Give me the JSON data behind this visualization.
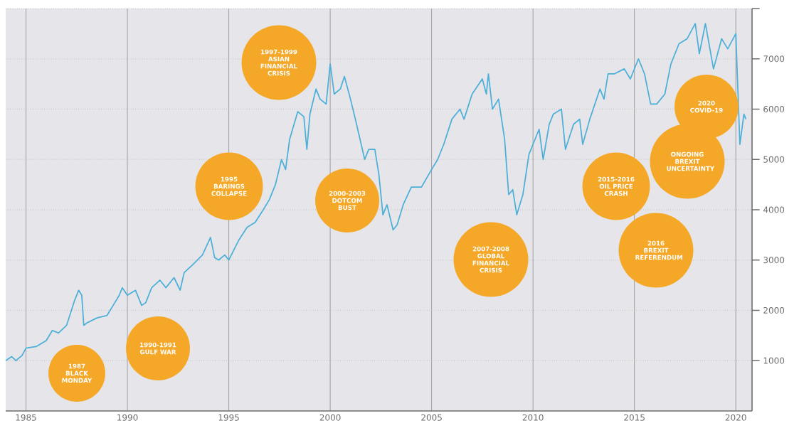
{
  "chart_data": {
    "type": "line",
    "series": [
      {
        "color": "#4bafd8",
        "x": [
          1984.0,
          1984.3,
          1984.5,
          1984.8,
          1985.0,
          1985.5,
          1986.0,
          1986.3,
          1986.6,
          1987.0,
          1987.4,
          1987.6,
          1987.75,
          1987.85,
          1988.0,
          1988.5,
          1989.0,
          1989.3,
          1989.6,
          1989.75,
          1990.0,
          1990.4,
          1990.7,
          1990.9,
          1991.2,
          1991.6,
          1991.9,
          1992.3,
          1992.6,
          1992.8,
          1993.2,
          1993.7,
          1994.1,
          1994.3,
          1994.5,
          1994.8,
          1995.0,
          1995.5,
          1995.9,
          1996.3,
          1996.7,
          1997.0,
          1997.3,
          1997.6,
          1997.8,
          1998.0,
          1998.4,
          1998.7,
          1998.85,
          1999.0,
          1999.3,
          1999.5,
          1999.8,
          2000.0,
          2000.2,
          2000.5,
          2000.7,
          2001.0,
          2001.3,
          2001.7,
          2001.9,
          2002.2,
          2002.4,
          2002.6,
          2002.8,
          2003.1,
          2003.3,
          2003.6,
          2004.0,
          2004.5,
          2005.0,
          2005.3,
          2005.6,
          2006.0,
          2006.4,
          2006.6,
          2007.0,
          2007.5,
          2007.7,
          2007.8,
          2008.0,
          2008.3,
          2008.6,
          2008.8,
          2009.0,
          2009.2,
          2009.5,
          2009.8,
          2010.0,
          2010.3,
          2010.5,
          2010.8,
          2011.0,
          2011.4,
          2011.6,
          2012.0,
          2012.3,
          2012.45,
          2012.8,
          2013.3,
          2013.5,
          2013.7,
          2014.0,
          2014.5,
          2014.8,
          2015.2,
          2015.5,
          2015.8,
          2016.1,
          2016.5,
          2016.8,
          2017.2,
          2017.6,
          2018.0,
          2018.2,
          2018.5,
          2018.9,
          2019.3,
          2019.6,
          2020.0,
          2020.2,
          2020.4,
          2020.5
        ],
        "values": [
          1000,
          1080,
          1000,
          1100,
          1250,
          1280,
          1400,
          1600,
          1550,
          1700,
          2200,
          2400,
          2300,
          1700,
          1750,
          1850,
          1900,
          2100,
          2300,
          2450,
          2300,
          2400,
          2100,
          2150,
          2450,
          2600,
          2450,
          2650,
          2400,
          2750,
          2900,
          3100,
          3450,
          3050,
          3000,
          3100,
          3000,
          3400,
          3650,
          3750,
          4000,
          4200,
          4500,
          5000,
          4800,
          5400,
          5950,
          5850,
          5200,
          5900,
          6400,
          6200,
          6100,
          6900,
          6300,
          6400,
          6650,
          6200,
          5700,
          5000,
          5200,
          5200,
          4700,
          3900,
          4100,
          3600,
          3700,
          4100,
          4450,
          4450,
          4800,
          5000,
          5300,
          5800,
          6000,
          5800,
          6300,
          6600,
          6300,
          6700,
          6000,
          6200,
          5400,
          4300,
          4400,
          3900,
          4300,
          5100,
          5300,
          5600,
          5000,
          5700,
          5900,
          6000,
          5200,
          5700,
          5800,
          5300,
          5800,
          6400,
          6200,
          6700,
          6700,
          6800,
          6600,
          7000,
          6700,
          6100,
          6100,
          6300,
          6900,
          7300,
          7400,
          7700,
          7100,
          7700,
          6800,
          7400,
          7200,
          7500,
          5300,
          5900,
          5800
        ]
      }
    ],
    "xlim": [
      1984,
      2020.8
    ],
    "ylim": [
      0,
      8000
    ],
    "xticks": [
      1985,
      1990,
      1995,
      2000,
      2005,
      2010,
      2015,
      2020
    ],
    "yticks": [
      1000,
      2000,
      3000,
      4000,
      5000,
      6000,
      7000,
      {
        "value": 8000,
        "label": null
      }
    ],
    "grid": true,
    "annotations": [
      "1987 BLACK MONDAY",
      "1990-1991 GULF WAR",
      "1995 BARINGS COLLAPSE",
      "1997-1999 ASIAN FINANCIAL CRISIS",
      "2000-2003 DOTCOM BUST",
      "2007-2008 GLOBAL FINANCIAL CRISIS",
      "2015-2016 OIL PRICE CRASH",
      "2016 BREXIT REFERENDUM",
      "ONGOING BREXIT UNCERTAINTY",
      "2020 COVID-19"
    ]
  }
}
